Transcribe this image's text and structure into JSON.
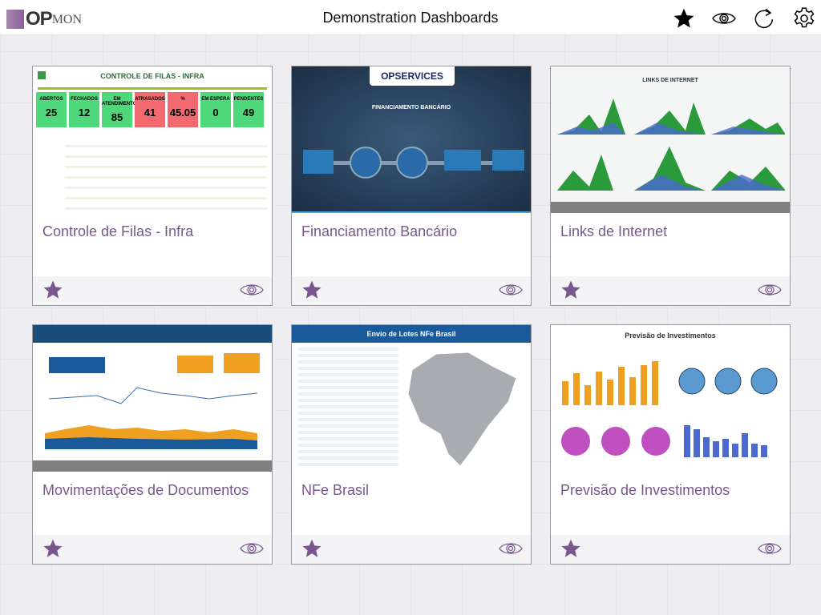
{
  "header": {
    "logo_text_bold": "OP",
    "logo_text": "MON",
    "title": "Demonstration Dashboards",
    "icons": [
      "star-icon",
      "eye-icon",
      "refresh-icon",
      "gear-icon"
    ]
  },
  "colors": {
    "accent": "#7a5690",
    "favorite": "#7a5690"
  },
  "cards": [
    {
      "title": "Controle de Filas - Infra",
      "thumb": {
        "heading": "CONTROLE DE FILAS - INFRA",
        "kpis": [
          {
            "label": "ABERTOS",
            "value": "25"
          },
          {
            "label": "FECHADOS",
            "value": "12"
          },
          {
            "label": "EM ATENDIMENTO",
            "value": "85"
          },
          {
            "label": "ATRASADOS",
            "value": "41"
          },
          {
            "label": "%",
            "value": "45.05"
          },
          {
            "label": "EM ESPERA",
            "value": "0"
          },
          {
            "label": "PENDENTES",
            "value": "49"
          }
        ]
      }
    },
    {
      "title": "Financiamento Bancário",
      "thumb": {
        "brand": "OPSERVICES",
        "heading": "FINANCIAMENTO BANCÁRIO"
      }
    },
    {
      "title": "Links de Internet",
      "thumb": {
        "heading": "LINKS DE INTERNET"
      }
    },
    {
      "title": "Movimentações de Documentos",
      "thumb": {}
    },
    {
      "title": "NFe Brasil",
      "thumb": {
        "heading": "Envio de Lotes NFe Brasil"
      }
    },
    {
      "title": "Previsão de Investimentos",
      "thumb": {
        "heading": "Previsão de Investimentos"
      }
    }
  ]
}
